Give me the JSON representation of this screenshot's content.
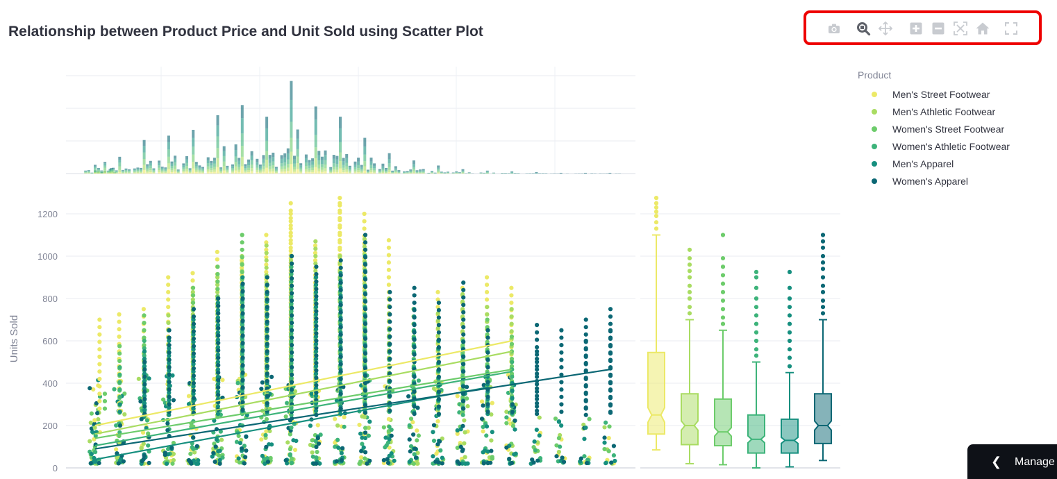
{
  "page": {
    "title": "Relationship between Product Price and Unit Sold using Scatter Plot",
    "manage_label": "Manage app"
  },
  "toolbar": {
    "items": [
      {
        "name": "camera-icon",
        "tooltip": "Download plot as a png"
      },
      {
        "name": "zoom-icon",
        "tooltip": "Zoom"
      },
      {
        "name": "pan-icon",
        "tooltip": "Pan"
      },
      {
        "name": "zoom-in-icon",
        "tooltip": "Zoom in"
      },
      {
        "name": "zoom-out-icon",
        "tooltip": "Zoom out"
      },
      {
        "name": "autoscale-icon",
        "tooltip": "Autoscale"
      },
      {
        "name": "home-icon",
        "tooltip": "Reset axes"
      },
      {
        "name": "fullscreen-icon",
        "tooltip": "Fullscreen"
      }
    ]
  },
  "legend": {
    "title": "Product",
    "items": [
      {
        "label": "Men's Street Footwear",
        "color": "#ece967"
      },
      {
        "label": "Men's Athletic Footwear",
        "color": "#a9dc62"
      },
      {
        "label": "Women's Street Footwear",
        "color": "#6dcc6b"
      },
      {
        "label": "Women's Athletic Footwear",
        "color": "#3db37a"
      },
      {
        "label": "Men's Apparel",
        "color": "#168f7f"
      },
      {
        "label": "Women's Apparel",
        "color": "#0b6774"
      }
    ]
  },
  "chart_data": {
    "type": "scatter",
    "title": "Relationship between Product Price and Unit Sold using Scatter Plot",
    "xlabel": "",
    "ylabel": "Units Sold",
    "ylim": [
      0,
      1300
    ],
    "xlim": [
      7,
      117
    ],
    "yticks": [
      0,
      200,
      400,
      600,
      800,
      1000,
      1200
    ],
    "marginal_x": "histogram",
    "marginal_y": "box",
    "trendline": "ols",
    "price_levels": [
      10,
      15,
      20,
      25,
      30,
      35,
      40,
      45,
      50,
      55,
      60,
      65,
      70,
      75,
      80,
      85,
      90,
      95,
      100,
      105,
      110,
      115
    ],
    "series": [
      {
        "name": "Men's Street Footwear",
        "color": "#ece967",
        "points": [
          [
            10,
            225
          ],
          [
            11,
            700
          ],
          [
            15,
            725
          ],
          [
            20,
            750
          ],
          [
            25,
            900
          ],
          [
            30,
            920
          ],
          [
            35,
            1020
          ],
          [
            40,
            980
          ],
          [
            45,
            1100
          ],
          [
            50,
            1250
          ],
          [
            50,
            1200
          ],
          [
            55,
            1050
          ],
          [
            60,
            1275
          ],
          [
            60,
            1250
          ],
          [
            65,
            1200
          ],
          [
            70,
            1075
          ],
          [
            80,
            830
          ],
          [
            85,
            850
          ],
          [
            90,
            900
          ],
          [
            95,
            850
          ],
          [
            20,
            400
          ],
          [
            30,
            350
          ],
          [
            40,
            300
          ],
          [
            50,
            280
          ],
          [
            60,
            250
          ],
          [
            70,
            230
          ],
          [
            80,
            220
          ]
        ],
        "trend": {
          "x": [
            10,
            95
          ],
          "y": [
            200,
            600
          ]
        },
        "box": {
          "min": 85,
          "q1": 160,
          "median": 250,
          "q3": 545,
          "max": 1100,
          "outliers": [
            1130,
            1160,
            1190,
            1210,
            1230,
            1250,
            1275
          ]
        }
      },
      {
        "name": "Men's Athletic Footwear",
        "color": "#a9dc62",
        "points": [
          [
            10,
            190
          ],
          [
            15,
            120
          ],
          [
            20,
            300
          ],
          [
            25,
            720
          ],
          [
            30,
            830
          ],
          [
            35,
            900
          ],
          [
            40,
            1000
          ],
          [
            45,
            1050
          ],
          [
            50,
            980
          ],
          [
            55,
            1070
          ],
          [
            60,
            1000
          ],
          [
            65,
            1080
          ],
          [
            70,
            800
          ],
          [
            75,
            750
          ],
          [
            80,
            730
          ],
          [
            85,
            820
          ],
          [
            90,
            760
          ],
          [
            95,
            750
          ],
          [
            25,
            250
          ],
          [
            35,
            300
          ],
          [
            45,
            280
          ],
          [
            55,
            260
          ],
          [
            65,
            240
          ]
        ],
        "trend": {
          "x": [
            10,
            95
          ],
          "y": [
            160,
            550
          ]
        },
        "box": {
          "min": 20,
          "q1": 110,
          "median": 200,
          "q3": 350,
          "max": 700,
          "outliers": [
            730,
            760,
            800,
            830,
            860,
            900,
            930,
            960,
            990,
            1030
          ]
        }
      },
      {
        "name": "Women's Street Footwear",
        "color": "#6dcc6b",
        "points": [
          [
            10,
            100
          ],
          [
            12,
            350
          ],
          [
            15,
            575
          ],
          [
            20,
            720
          ],
          [
            25,
            650
          ],
          [
            30,
            850
          ],
          [
            35,
            950
          ],
          [
            40,
            1100
          ],
          [
            45,
            900
          ],
          [
            50,
            800
          ],
          [
            55,
            850
          ],
          [
            60,
            900
          ],
          [
            65,
            700
          ],
          [
            70,
            650
          ],
          [
            75,
            620
          ],
          [
            80,
            600
          ],
          [
            85,
            580
          ],
          [
            90,
            700
          ],
          [
            95,
            620
          ],
          [
            15,
            200
          ],
          [
            25,
            260
          ],
          [
            35,
            240
          ],
          [
            45,
            230
          ]
        ],
        "trend": {
          "x": [
            10,
            95
          ],
          "y": [
            140,
            465
          ]
        },
        "box": {
          "min": 15,
          "q1": 105,
          "median": 170,
          "q3": 325,
          "max": 650,
          "outliers": [
            680,
            710,
            750,
            790,
            830,
            870,
            910,
            950,
            990,
            1100
          ]
        }
      },
      {
        "name": "Women's Athletic Footwear",
        "color": "#3db37a",
        "points": [
          [
            10,
            75
          ],
          [
            15,
            475
          ],
          [
            20,
            600
          ],
          [
            25,
            550
          ],
          [
            30,
            700
          ],
          [
            35,
            800
          ],
          [
            40,
            850
          ],
          [
            45,
            860
          ],
          [
            50,
            950
          ],
          [
            55,
            900
          ],
          [
            60,
            870
          ],
          [
            65,
            760
          ],
          [
            70,
            580
          ],
          [
            75,
            650
          ],
          [
            80,
            560
          ],
          [
            85,
            600
          ],
          [
            90,
            550
          ],
          [
            95,
            500
          ],
          [
            30,
            220
          ],
          [
            40,
            200
          ],
          [
            50,
            190
          ]
        ],
        "trend": {
          "x": [
            10,
            95
          ],
          "y": [
            105,
            455
          ]
        },
        "box": {
          "min": 0,
          "q1": 70,
          "median": 135,
          "q3": 250,
          "max": 500,
          "outliers": [
            530,
            560,
            600,
            640,
            680,
            720,
            760,
            800,
            850,
            900,
            925
          ]
        }
      },
      {
        "name": "Men's Apparel",
        "color": "#168f7f",
        "points": [
          [
            10,
            30
          ],
          [
            15,
            300
          ],
          [
            20,
            550
          ],
          [
            25,
            600
          ],
          [
            30,
            700
          ],
          [
            35,
            780
          ],
          [
            40,
            900
          ],
          [
            45,
            820
          ],
          [
            50,
            1000
          ],
          [
            55,
            900
          ],
          [
            60,
            920
          ],
          [
            65,
            1000
          ],
          [
            70,
            620
          ],
          [
            75,
            750
          ],
          [
            80,
            600
          ],
          [
            85,
            560
          ],
          [
            90,
            430
          ],
          [
            95,
            400
          ],
          [
            100,
            180
          ],
          [
            105,
            200
          ],
          [
            110,
            190
          ]
        ],
        "trend": {
          "x": [
            10,
            90
          ],
          "y": [
            40,
            380
          ]
        },
        "box": {
          "min": 5,
          "q1": 70,
          "median": 130,
          "q3": 230,
          "max": 450,
          "outliers": [
            480,
            520,
            560,
            600,
            640,
            680,
            720,
            760,
            800,
            850,
            925
          ]
        }
      },
      {
        "name": "Women's Apparel",
        "color": "#0b6774",
        "points": [
          [
            10,
            110
          ],
          [
            15,
            200
          ],
          [
            20,
            500
          ],
          [
            25,
            650
          ],
          [
            30,
            750
          ],
          [
            35,
            800
          ],
          [
            40,
            870
          ],
          [
            45,
            900
          ],
          [
            50,
            1000
          ],
          [
            55,
            950
          ],
          [
            60,
            980
          ],
          [
            65,
            1100
          ],
          [
            70,
            830
          ],
          [
            75,
            850
          ],
          [
            80,
            780
          ],
          [
            85,
            875
          ],
          [
            90,
            650
          ],
          [
            100,
            675
          ],
          [
            105,
            650
          ],
          [
            110,
            700
          ],
          [
            115,
            750
          ],
          [
            115,
            650
          ],
          [
            110,
            600
          ],
          [
            100,
            550
          ],
          [
            95,
            300
          ]
        ],
        "trend": {
          "x": [
            10,
            115
          ],
          "y": [
            90,
            465
          ]
        },
        "box": {
          "min": 35,
          "q1": 115,
          "median": 200,
          "q3": 350,
          "max": 700,
          "outliers": [
            730,
            760,
            790,
            830,
            860,
            900,
            940,
            970,
            1000,
            1040,
            1070,
            1100
          ]
        }
      }
    ],
    "histogram_note": "stacked marginal histogram of price counts per product"
  }
}
